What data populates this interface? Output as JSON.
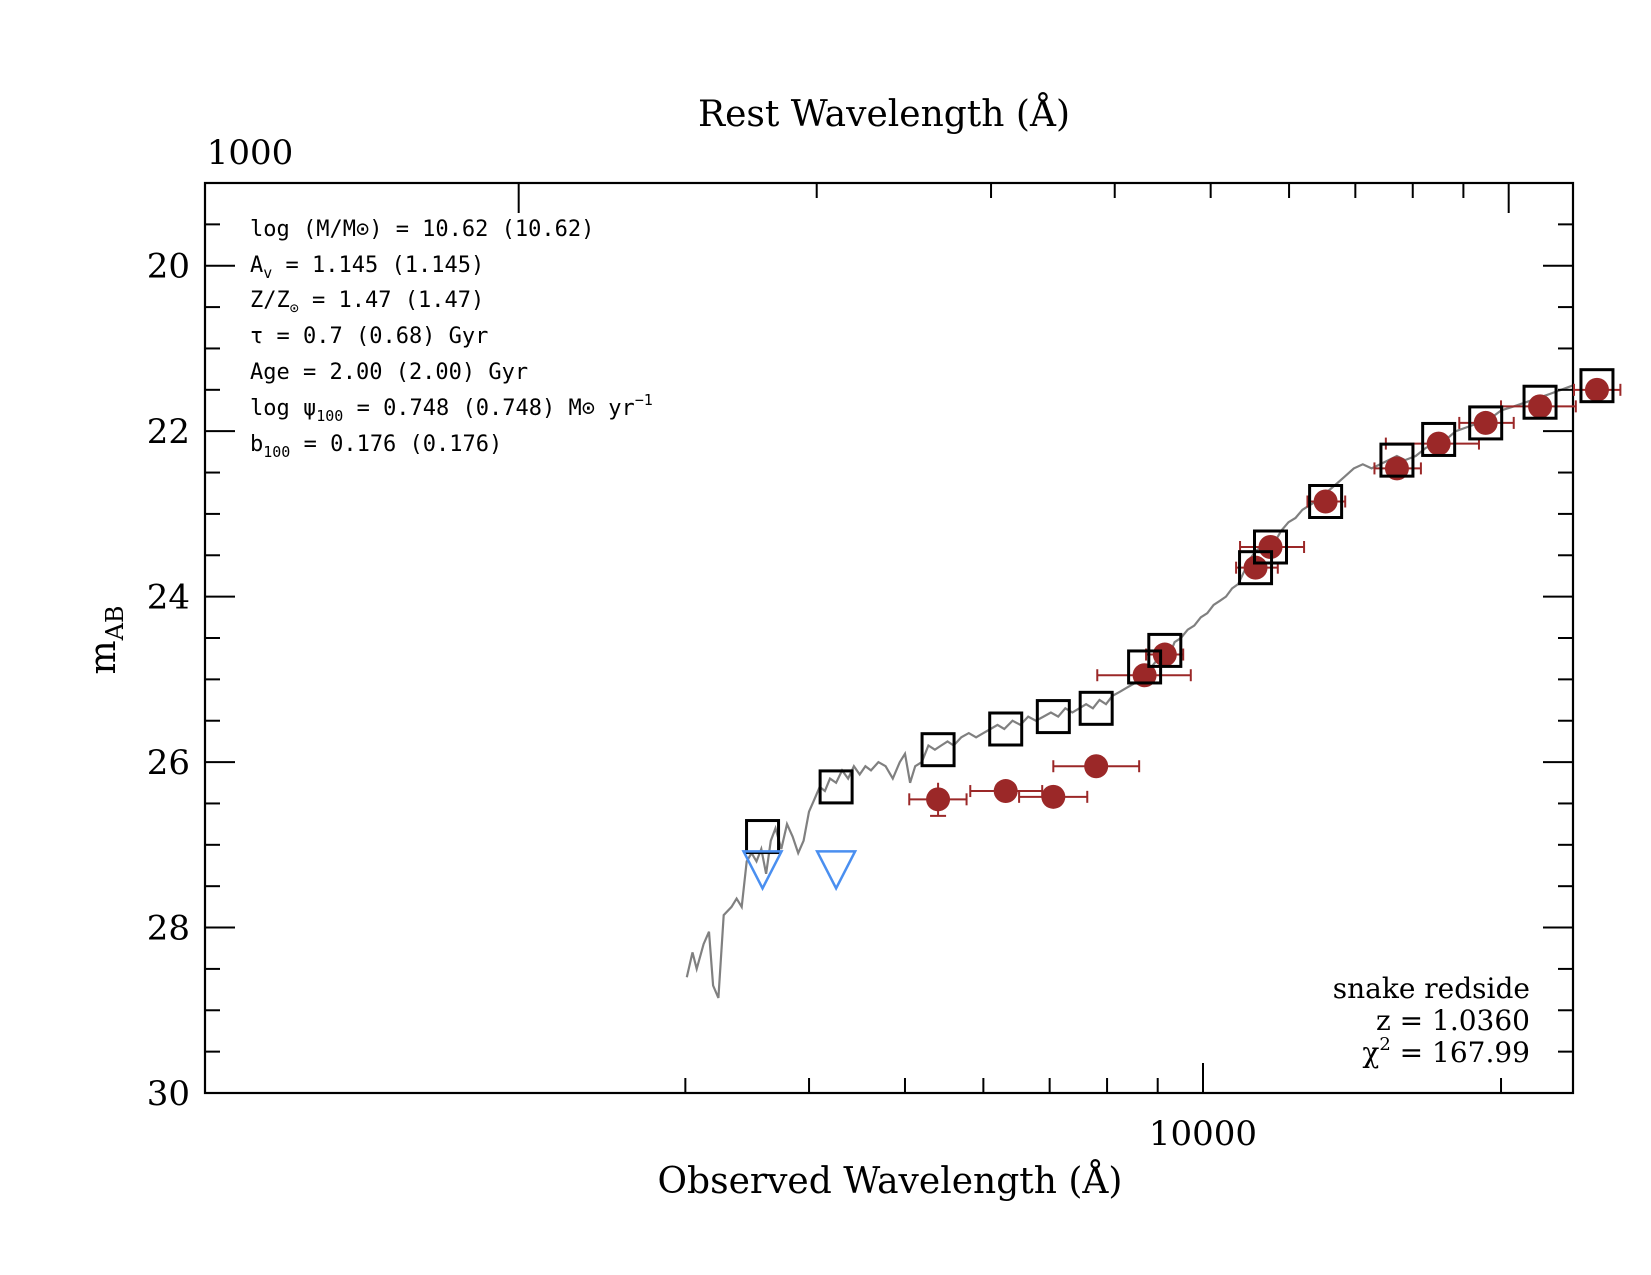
{
  "chart_data": {
    "type": "scatter",
    "title": "",
    "xlabel": "Observed Wavelength (Å)",
    "ylabel": "m_AB",
    "top_xlabel": "Rest Wavelength (Å)",
    "x_scale": "log",
    "xlim": [
      3000,
      20000
    ],
    "ylim": [
      30,
      19
    ],
    "y_ticks": [
      20,
      22,
      24,
      26,
      28,
      30
    ],
    "y_tick_labels": [
      "20",
      "22",
      "24",
      "26",
      "28",
      "30"
    ],
    "x_tick_label_bottom": "10000",
    "x_tick_label_top": "1000",
    "colors": {
      "model": "#808080",
      "observed": "#9b2828",
      "upper_limit": "#4a8ff0",
      "model_photometry": "#000000"
    },
    "annotations": {
      "mass": "log (M/M⊙) = 10.62 (10.62)",
      "av_prefix": "A",
      "av_sub": "v",
      "av_rest": " = 1.145 (1.145)",
      "z_prefix": "Z/Z",
      "z_sub": "⊙",
      "z_rest": " = 1.47 (1.47)",
      "tau": "τ = 0.7 (0.68) Gyr",
      "age": "Age = 2.00 (2.00) Gyr",
      "sfr_prefix": "log ψ",
      "sfr_sub": "100",
      "sfr_rest": " = 0.748 (0.748) M⊙ yr",
      "sfr_sup": "−1",
      "b_prefix": "b",
      "b_sub": "100",
      "b_rest": " = 0.176 (0.176)"
    },
    "corner_labels": {
      "name": "snake redside",
      "z": "z = 1.0360",
      "chi_prefix": "χ",
      "chi_sup": "2",
      "chi_rest": " = 167.99"
    },
    "model_photometry": [
      {
        "x": 3590,
        "y": 26.9
      },
      {
        "x": 4260,
        "y": 26.3
      },
      {
        "x": 5400,
        "y": 25.85
      },
      {
        "x": 6320,
        "y": 25.6
      },
      {
        "x": 7060,
        "y": 25.45
      },
      {
        "x": 7800,
        "y": 25.35
      },
      {
        "x": 8730,
        "y": 24.85
      },
      {
        "x": 9150,
        "y": 24.65
      },
      {
        "x": 11300,
        "y": 23.65
      },
      {
        "x": 11700,
        "y": 23.4
      },
      {
        "x": 13300,
        "y": 22.85
      },
      {
        "x": 15700,
        "y": 22.35
      },
      {
        "x": 17300,
        "y": 22.1
      },
      {
        "x": 19300,
        "y": 21.9
      },
      {
        "x": 21900,
        "y": 21.65
      },
      {
        "x": 25000,
        "y": 21.45
      }
    ],
    "observed": [
      {
        "x": 5400,
        "y": 26.45,
        "xerr": [
          5050,
          5770
        ],
        "yerr": 0.2
      },
      {
        "x": 6320,
        "y": 26.35,
        "xerr": [
          5820,
          6880
        ],
        "yerr": 0.08
      },
      {
        "x": 7060,
        "y": 26.42,
        "xerr": [
          6520,
          7640
        ],
        "yerr": 0.08
      },
      {
        "x": 7800,
        "y": 26.05,
        "xerr": [
          7060,
          8620
        ],
        "yerr": 0.06
      },
      {
        "x": 8730,
        "y": 24.95,
        "xerr": [
          7820,
          9720
        ],
        "yerr": 0.06
      },
      {
        "x": 9150,
        "y": 24.7,
        "xerr": [
          8760,
          9550
        ],
        "yerr": 0.05
      },
      {
        "x": 11300,
        "y": 23.65,
        "xerr": [
          10800,
          11900
        ],
        "yerr": 0.05
      },
      {
        "x": 11700,
        "y": 23.4,
        "xerr": [
          10900,
          12650
        ],
        "yerr": 0.05
      },
      {
        "x": 13300,
        "y": 22.85,
        "xerr": [
          12750,
          13920
        ],
        "yerr": 0.05
      },
      {
        "x": 15700,
        "y": 22.45,
        "xerr": [
          14900,
          16600
        ],
        "yerr": 0.05
      },
      {
        "x": 17300,
        "y": 22.15,
        "xerr": [
          15300,
          19000
        ],
        "yerr": 0.05
      },
      {
        "x": 19300,
        "y": 21.9,
        "xerr": [
          18150,
          20600
        ],
        "yerr": 0.05
      },
      {
        "x": 21900,
        "y": 21.7,
        "xerr": [
          20000,
          23800
        ],
        "yerr": 0.05
      },
      {
        "x": 25000,
        "y": 21.5,
        "xerr": [
          23700,
          26400
        ],
        "yerr": 0.05
      }
    ],
    "upper_limits": [
      {
        "x": 3590,
        "y": 27.2
      },
      {
        "x": 4260,
        "y": 27.2
      }
    ],
    "model_spectrum": [
      [
        3010,
        28.6
      ],
      [
        3050,
        28.3
      ],
      [
        3080,
        28.5
      ],
      [
        3130,
        28.2
      ],
      [
        3170,
        28.05
      ],
      [
        3200,
        28.7
      ],
      [
        3240,
        28.85
      ],
      [
        3280,
        27.85
      ],
      [
        3340,
        27.75
      ],
      [
        3380,
        27.65
      ],
      [
        3420,
        27.75
      ],
      [
        3460,
        27.2
      ],
      [
        3500,
        27.1
      ],
      [
        3540,
        27.2
      ],
      [
        3580,
        27.05
      ],
      [
        3620,
        27.35
      ],
      [
        3660,
        26.95
      ],
      [
        3700,
        26.8
      ],
      [
        3750,
        27.05
      ],
      [
        3800,
        26.75
      ],
      [
        3850,
        26.9
      ],
      [
        3900,
        27.1
      ],
      [
        3950,
        26.95
      ],
      [
        4000,
        26.6
      ],
      [
        4050,
        26.45
      ],
      [
        4100,
        26.3
      ],
      [
        4150,
        26.35
      ],
      [
        4200,
        26.2
      ],
      [
        4260,
        26.25
      ],
      [
        4320,
        26.1
      ],
      [
        4380,
        26.2
      ],
      [
        4440,
        26.05
      ],
      [
        4500,
        26.15
      ],
      [
        4560,
        26.05
      ],
      [
        4620,
        26.1
      ],
      [
        4700,
        26.0
      ],
      [
        4780,
        26.05
      ],
      [
        4860,
        26.2
      ],
      [
        4940,
        26.0
      ],
      [
        5000,
        25.9
      ],
      [
        5060,
        26.25
      ],
      [
        5120,
        26.05
      ],
      [
        5200,
        26.0
      ],
      [
        5280,
        25.8
      ],
      [
        5360,
        25.85
      ],
      [
        5440,
        25.8
      ],
      [
        5520,
        25.75
      ],
      [
        5600,
        25.8
      ],
      [
        5700,
        25.7
      ],
      [
        5800,
        25.65
      ],
      [
        5900,
        25.7
      ],
      [
        6000,
        25.65
      ],
      [
        6100,
        25.6
      ],
      [
        6200,
        25.55
      ],
      [
        6300,
        25.6
      ],
      [
        6420,
        25.5
      ],
      [
        6540,
        25.55
      ],
      [
        6660,
        25.45
      ],
      [
        6780,
        25.5
      ],
      [
        6900,
        25.45
      ],
      [
        7020,
        25.4
      ],
      [
        7140,
        25.45
      ],
      [
        7260,
        25.35
      ],
      [
        7380,
        25.4
      ],
      [
        7500,
        25.35
      ],
      [
        7620,
        25.3
      ],
      [
        7740,
        25.35
      ],
      [
        7860,
        25.25
      ],
      [
        7980,
        25.3
      ],
      [
        8100,
        25.2
      ],
      [
        8240,
        25.15
      ],
      [
        8380,
        25.1
      ],
      [
        8520,
        25.05
      ],
      [
        8660,
        25.0
      ],
      [
        8800,
        24.9
      ],
      [
        8940,
        24.8
      ],
      [
        9080,
        24.7
      ],
      [
        9220,
        24.75
      ],
      [
        9360,
        24.55
      ],
      [
        9500,
        24.5
      ],
      [
        9650,
        24.4
      ],
      [
        9800,
        24.35
      ],
      [
        9950,
        24.25
      ],
      [
        10100,
        24.2
      ],
      [
        10250,
        24.1
      ],
      [
        10400,
        24.05
      ],
      [
        10550,
        24.0
      ],
      [
        10700,
        23.9
      ],
      [
        10850,
        23.85
      ],
      [
        11000,
        23.7
      ],
      [
        11150,
        23.55
      ],
      [
        11300,
        23.45
      ],
      [
        11450,
        23.4
      ],
      [
        11600,
        23.3
      ],
      [
        11800,
        23.35
      ],
      [
        12000,
        23.2
      ],
      [
        12200,
        23.1
      ],
      [
        12400,
        23.05
      ],
      [
        12600,
        22.95
      ],
      [
        12800,
        22.9
      ],
      [
        13000,
        22.85
      ],
      [
        13300,
        22.75
      ],
      [
        13600,
        22.65
      ],
      [
        13900,
        22.55
      ],
      [
        14200,
        22.45
      ],
      [
        14500,
        22.4
      ],
      [
        14800,
        22.45
      ],
      [
        15100,
        22.4
      ],
      [
        15400,
        22.35
      ],
      [
        15700,
        22.3
      ],
      [
        16000,
        22.35
      ],
      [
        16400,
        22.3
      ],
      [
        16800,
        22.2
      ],
      [
        17200,
        22.15
      ],
      [
        17600,
        22.1
      ],
      [
        18000,
        22.0
      ],
      [
        18500,
        21.95
      ],
      [
        19000,
        21.9
      ],
      [
        19500,
        21.85
      ],
      [
        20000,
        21.75
      ],
      [
        20600,
        21.7
      ],
      [
        21200,
        21.65
      ],
      [
        21800,
        21.6
      ],
      [
        22400,
        21.55
      ],
      [
        23000,
        21.5
      ],
      [
        23600,
        21.45
      ],
      [
        24200,
        21.4
      ],
      [
        24800,
        21.4
      ],
      [
        25400,
        21.35
      ],
      [
        26000,
        21.3
      ],
      [
        26600,
        21.25
      ],
      [
        27200,
        21.2
      ],
      [
        27800,
        21.15
      ],
      [
        28400,
        21.1
      ],
      [
        29000,
        21.1
      ],
      [
        29600,
        21.05
      ],
      [
        30200,
        21.0
      ]
    ]
  }
}
